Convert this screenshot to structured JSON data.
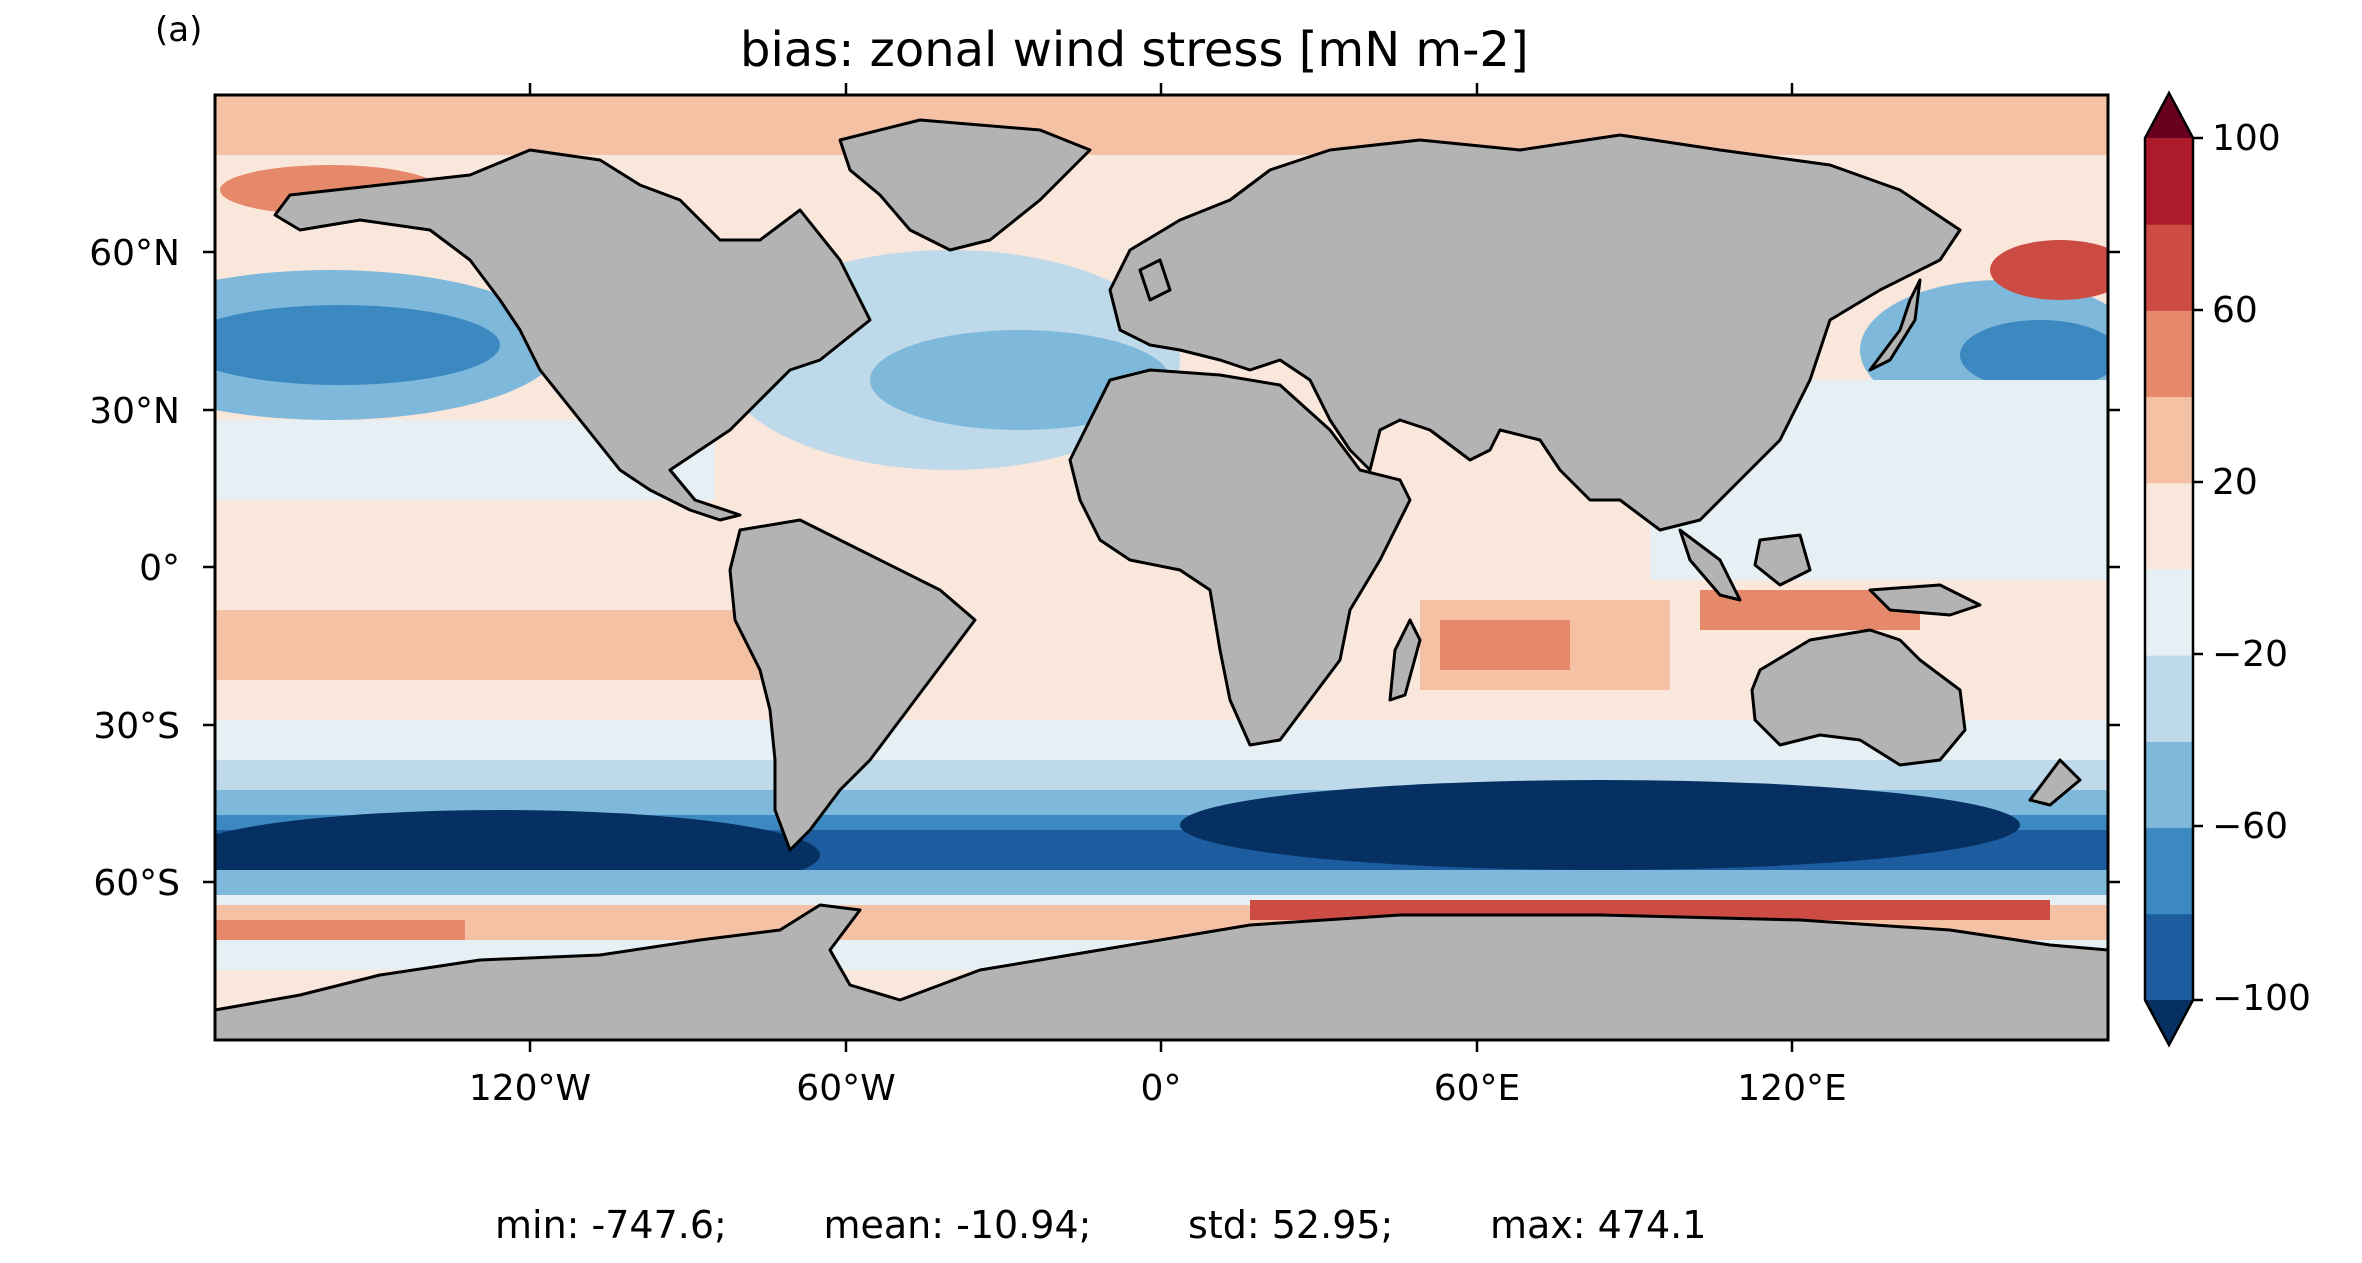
{
  "panel_label": "(a)",
  "title": "bias: zonal wind stress [mN m-2]",
  "stats_text": "min: -747.6;        mean: -10.94;        std: 52.95;        max: 474.1",
  "map": {
    "projection": "PlateCarree",
    "lon_range": [
      -180,
      180
    ],
    "lat_range": [
      -90,
      90
    ],
    "land_color": "#b3b3b3",
    "coastline_color": "#000000",
    "x_ticks": [
      "120°W",
      "60°W",
      "0°",
      "60°E",
      "120°E"
    ],
    "y_ticks": [
      "60°N",
      "30°N",
      "0°",
      "30°S",
      "60°S"
    ]
  },
  "colorbar": {
    "extend": "both",
    "levels": [
      -100,
      -80,
      -60,
      -40,
      -20,
      0,
      20,
      40,
      60,
      80,
      100
    ],
    "tick_labels": [
      "100",
      "60",
      "20",
      "−20",
      "−60",
      "−100"
    ],
    "colors": [
      "#053061",
      "#1c5c9f",
      "#3b89c0",
      "#7eb8da",
      "#bed9ea",
      "#e6eff4",
      "#fae7dc",
      "#f5c1a5",
      "#e6896a",
      "#cc4c43",
      "#ac1a2c",
      "#67001f"
    ]
  }
}
